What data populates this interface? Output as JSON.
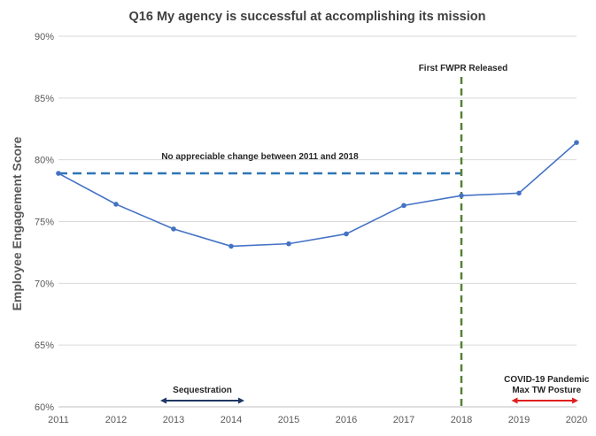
{
  "chart_data": {
    "type": "line",
    "title": "Q16 My agency is successful at accomplishing its mission",
    "ylabel": "Employee Engagement Score",
    "xlabel": "",
    "x": [
      2011,
      2012,
      2013,
      2014,
      2015,
      2016,
      2017,
      2018,
      2019,
      2020
    ],
    "xlim": [
      2011,
      2020
    ],
    "ylim": [
      60,
      90
    ],
    "y_ticks": [
      60,
      65,
      70,
      75,
      80,
      85,
      90
    ],
    "y_tick_labels": [
      "60%",
      "65%",
      "70%",
      "75%",
      "80%",
      "85%",
      "90%"
    ],
    "grid": true,
    "series": [
      {
        "values": [
          78.9,
          76.4,
          74.4,
          73.0,
          73.2,
          74.0,
          76.3,
          77.1,
          77.3,
          81.4
        ],
        "color": "#4472C4"
      }
    ],
    "reference_line": {
      "label": "No appreciable change between 2011 and 2018",
      "y": 78.9,
      "x_start": 2011,
      "x_end": 2018,
      "color": "#2E75B6",
      "style": "dashed"
    },
    "vertical_line": {
      "label": "First FWPR Released",
      "x": 2018,
      "color": "#548235",
      "style": "dashed"
    },
    "spans": [
      {
        "label": "Sequestration",
        "x_start": 2012.8,
        "x_end": 2014.2,
        "y": 60.5,
        "color": "#1F3864"
      },
      {
        "label_lines": [
          "COVID-19 Pandemic",
          "Max TW Posture"
        ],
        "x_start": 2018.9,
        "x_end": 2020,
        "y": 60.5,
        "color": "#E02020"
      }
    ]
  }
}
